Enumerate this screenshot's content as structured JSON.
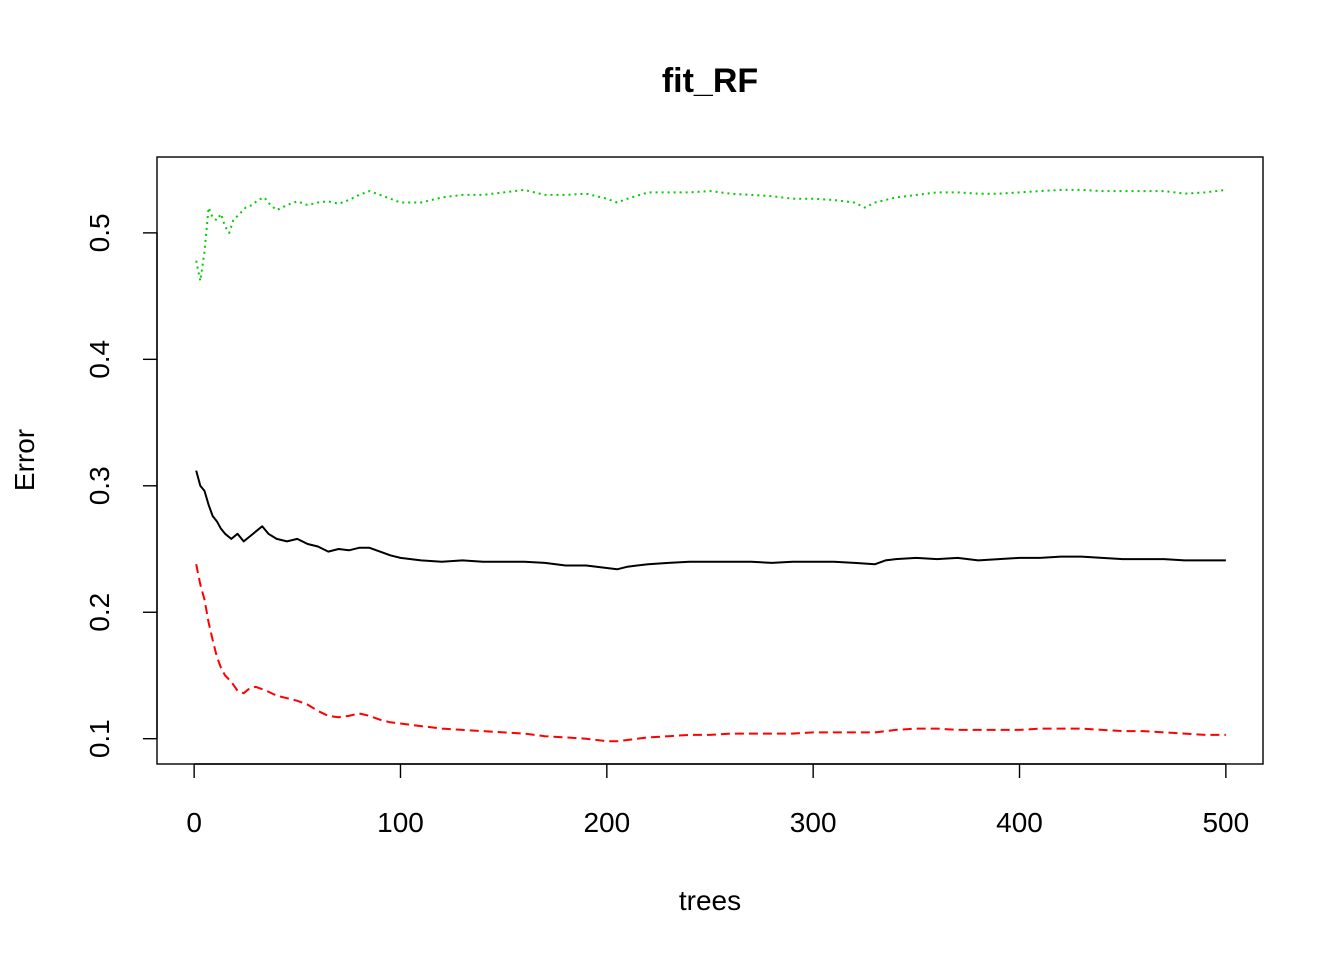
{
  "chart_data": {
    "type": "line",
    "title": "fit_RF",
    "xlabel": "trees",
    "ylabel": "Error",
    "xlim": [
      -18,
      518
    ],
    "ylim": [
      0.08,
      0.56
    ],
    "x_ticks": [
      0,
      100,
      200,
      300,
      400,
      500
    ],
    "y_ticks": [
      0.1,
      0.2,
      0.3,
      0.4,
      0.5
    ],
    "grid": false,
    "legend": "none",
    "series": [
      {
        "color": "#000000",
        "style": "solid",
        "points": [
          [
            1,
            0.312
          ],
          [
            3,
            0.3
          ],
          [
            5,
            0.296
          ],
          [
            7,
            0.285
          ],
          [
            9,
            0.276
          ],
          [
            11,
            0.272
          ],
          [
            13,
            0.266
          ],
          [
            15,
            0.262
          ],
          [
            18,
            0.258
          ],
          [
            21,
            0.262
          ],
          [
            24,
            0.256
          ],
          [
            27,
            0.26
          ],
          [
            30,
            0.264
          ],
          [
            33,
            0.268
          ],
          [
            36,
            0.262
          ],
          [
            40,
            0.258
          ],
          [
            45,
            0.256
          ],
          [
            50,
            0.258
          ],
          [
            55,
            0.254
          ],
          [
            60,
            0.252
          ],
          [
            65,
            0.248
          ],
          [
            70,
            0.25
          ],
          [
            75,
            0.249
          ],
          [
            80,
            0.251
          ],
          [
            85,
            0.251
          ],
          [
            90,
            0.248
          ],
          [
            95,
            0.245
          ],
          [
            100,
            0.243
          ],
          [
            110,
            0.241
          ],
          [
            120,
            0.24
          ],
          [
            130,
            0.241
          ],
          [
            140,
            0.24
          ],
          [
            150,
            0.24
          ],
          [
            160,
            0.24
          ],
          [
            170,
            0.239
          ],
          [
            180,
            0.237
          ],
          [
            190,
            0.237
          ],
          [
            200,
            0.235
          ],
          [
            205,
            0.234
          ],
          [
            210,
            0.236
          ],
          [
            220,
            0.238
          ],
          [
            230,
            0.239
          ],
          [
            240,
            0.24
          ],
          [
            250,
            0.24
          ],
          [
            260,
            0.24
          ],
          [
            270,
            0.24
          ],
          [
            280,
            0.239
          ],
          [
            290,
            0.24
          ],
          [
            300,
            0.24
          ],
          [
            310,
            0.24
          ],
          [
            320,
            0.239
          ],
          [
            330,
            0.238
          ],
          [
            335,
            0.241
          ],
          [
            340,
            0.242
          ],
          [
            350,
            0.243
          ],
          [
            360,
            0.242
          ],
          [
            370,
            0.243
          ],
          [
            380,
            0.241
          ],
          [
            390,
            0.242
          ],
          [
            400,
            0.243
          ],
          [
            410,
            0.243
          ],
          [
            420,
            0.244
          ],
          [
            430,
            0.244
          ],
          [
            440,
            0.243
          ],
          [
            450,
            0.242
          ],
          [
            460,
            0.242
          ],
          [
            470,
            0.242
          ],
          [
            480,
            0.241
          ],
          [
            490,
            0.241
          ],
          [
            500,
            0.241
          ]
        ]
      },
      {
        "color": "#ff0000",
        "style": "dashed",
        "points": [
          [
            1,
            0.238
          ],
          [
            3,
            0.222
          ],
          [
            5,
            0.21
          ],
          [
            7,
            0.192
          ],
          [
            9,
            0.178
          ],
          [
            11,
            0.165
          ],
          [
            13,
            0.156
          ],
          [
            15,
            0.15
          ],
          [
            18,
            0.145
          ],
          [
            21,
            0.138
          ],
          [
            24,
            0.136
          ],
          [
            27,
            0.14
          ],
          [
            30,
            0.141
          ],
          [
            35,
            0.138
          ],
          [
            40,
            0.134
          ],
          [
            45,
            0.132
          ],
          [
            50,
            0.13
          ],
          [
            55,
            0.127
          ],
          [
            60,
            0.122
          ],
          [
            65,
            0.118
          ],
          [
            70,
            0.117
          ],
          [
            75,
            0.118
          ],
          [
            80,
            0.12
          ],
          [
            85,
            0.118
          ],
          [
            90,
            0.115
          ],
          [
            95,
            0.113
          ],
          [
            100,
            0.112
          ],
          [
            110,
            0.11
          ],
          [
            120,
            0.108
          ],
          [
            130,
            0.107
          ],
          [
            140,
            0.106
          ],
          [
            150,
            0.105
          ],
          [
            160,
            0.104
          ],
          [
            170,
            0.102
          ],
          [
            180,
            0.101
          ],
          [
            190,
            0.1
          ],
          [
            200,
            0.098
          ],
          [
            205,
            0.098
          ],
          [
            210,
            0.099
          ],
          [
            220,
            0.101
          ],
          [
            230,
            0.102
          ],
          [
            240,
            0.103
          ],
          [
            250,
            0.103
          ],
          [
            260,
            0.104
          ],
          [
            270,
            0.104
          ],
          [
            280,
            0.104
          ],
          [
            290,
            0.104
          ],
          [
            300,
            0.105
          ],
          [
            310,
            0.105
          ],
          [
            320,
            0.105
          ],
          [
            330,
            0.105
          ],
          [
            340,
            0.107
          ],
          [
            350,
            0.108
          ],
          [
            360,
            0.108
          ],
          [
            370,
            0.107
          ],
          [
            380,
            0.107
          ],
          [
            390,
            0.107
          ],
          [
            400,
            0.107
          ],
          [
            410,
            0.108
          ],
          [
            420,
            0.108
          ],
          [
            430,
            0.108
          ],
          [
            440,
            0.107
          ],
          [
            450,
            0.106
          ],
          [
            460,
            0.106
          ],
          [
            470,
            0.105
          ],
          [
            480,
            0.104
          ],
          [
            490,
            0.103
          ],
          [
            500,
            0.103
          ]
        ]
      },
      {
        "color": "#00cd00",
        "style": "dotted",
        "points": [
          [
            1,
            0.478
          ],
          [
            3,
            0.462
          ],
          [
            5,
            0.485
          ],
          [
            7,
            0.52
          ],
          [
            9,
            0.512
          ],
          [
            11,
            0.51
          ],
          [
            13,
            0.515
          ],
          [
            15,
            0.505
          ],
          [
            17,
            0.5
          ],
          [
            19,
            0.51
          ],
          [
            22,
            0.515
          ],
          [
            25,
            0.52
          ],
          [
            28,
            0.522
          ],
          [
            31,
            0.526
          ],
          [
            34,
            0.528
          ],
          [
            37,
            0.522
          ],
          [
            40,
            0.518
          ],
          [
            45,
            0.522
          ],
          [
            50,
            0.525
          ],
          [
            55,
            0.522
          ],
          [
            60,
            0.524
          ],
          [
            65,
            0.525
          ],
          [
            70,
            0.523
          ],
          [
            75,
            0.526
          ],
          [
            80,
            0.53
          ],
          [
            85,
            0.533
          ],
          [
            90,
            0.53
          ],
          [
            95,
            0.527
          ],
          [
            100,
            0.524
          ],
          [
            110,
            0.524
          ],
          [
            120,
            0.528
          ],
          [
            130,
            0.53
          ],
          [
            140,
            0.53
          ],
          [
            150,
            0.532
          ],
          [
            160,
            0.534
          ],
          [
            170,
            0.53
          ],
          [
            180,
            0.53
          ],
          [
            190,
            0.531
          ],
          [
            200,
            0.527
          ],
          [
            205,
            0.524
          ],
          [
            210,
            0.527
          ],
          [
            220,
            0.532
          ],
          [
            230,
            0.532
          ],
          [
            240,
            0.532
          ],
          [
            250,
            0.533
          ],
          [
            260,
            0.531
          ],
          [
            270,
            0.53
          ],
          [
            280,
            0.529
          ],
          [
            290,
            0.527
          ],
          [
            300,
            0.527
          ],
          [
            310,
            0.526
          ],
          [
            320,
            0.524
          ],
          [
            325,
            0.52
          ],
          [
            330,
            0.524
          ],
          [
            340,
            0.528
          ],
          [
            350,
            0.53
          ],
          [
            360,
            0.532
          ],
          [
            370,
            0.532
          ],
          [
            380,
            0.531
          ],
          [
            390,
            0.531
          ],
          [
            400,
            0.532
          ],
          [
            410,
            0.533
          ],
          [
            420,
            0.534
          ],
          [
            430,
            0.534
          ],
          [
            440,
            0.533
          ],
          [
            450,
            0.533
          ],
          [
            460,
            0.533
          ],
          [
            470,
            0.533
          ],
          [
            480,
            0.531
          ],
          [
            490,
            0.532
          ],
          [
            500,
            0.534
          ]
        ]
      }
    ]
  }
}
